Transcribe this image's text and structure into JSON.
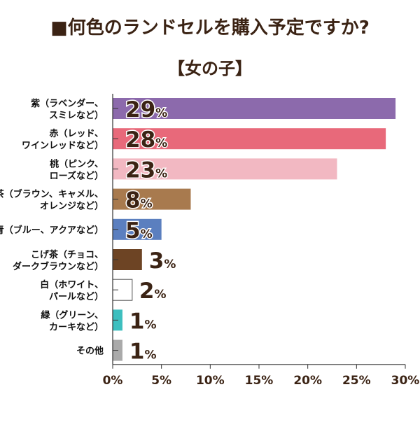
{
  "chart_data": {
    "type": "bar",
    "orientation": "horizontal",
    "title": "■何色のランドセルを購入予定ですか?",
    "subtitle": "【女の子】",
    "categories": [
      [
        "紫（ラベンダー、",
        "スミレなど）"
      ],
      [
        "赤（レッド、",
        "ワインレッドなど）"
      ],
      [
        "桃（ピンク、",
        "ローズなど）"
      ],
      [
        "茶（ブラウン、キャメル、",
        "オレンジなど）"
      ],
      [
        "青（ブルー、アクアなど）"
      ],
      [
        "こげ茶（チョコ、",
        "ダークブラウンなど）"
      ],
      [
        "白（ホワイト、",
        "パールなど）"
      ],
      [
        "緑（グリーン、",
        "カーキなど）"
      ],
      [
        "その他"
      ]
    ],
    "values": [
      29,
      28,
      23,
      8,
      5,
      3,
      2,
      1,
      1
    ],
    "value_labels": [
      "29",
      "28",
      "23",
      "8",
      "5",
      "3",
      "2",
      "1",
      "1"
    ],
    "value_unit": "%",
    "colors": [
      "#8c6aac",
      "#e8697a",
      "#f2b8c2",
      "#a87a4e",
      "#5b7fbf",
      "#6d4424",
      "#ffffff",
      "#3dbfbf",
      "#aaaaaa"
    ],
    "xlim": [
      0,
      30
    ],
    "xticks": [
      0,
      5,
      10,
      15,
      20,
      25,
      30
    ],
    "xtick_labels": [
      "0%",
      "5%",
      "10%",
      "15%",
      "20%",
      "25%",
      "30%"
    ],
    "grid": false,
    "legend": "none"
  }
}
